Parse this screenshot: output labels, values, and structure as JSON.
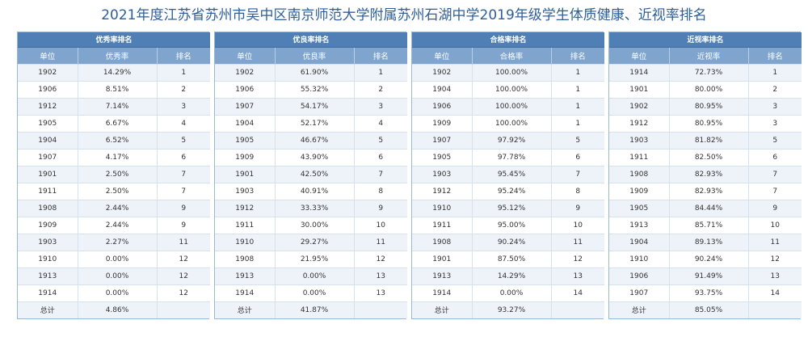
{
  "title": "2021年度江苏省苏州市吴中区南京师范大学附属苏州石湖中学2019年级学生体质健康、近视率排名",
  "panels": [
    {
      "title": "优秀率排名",
      "headers": [
        "单位",
        "优秀率",
        "排名"
      ],
      "rows": [
        [
          "1902",
          "14.29%",
          "1"
        ],
        [
          "1906",
          "8.51%",
          "2"
        ],
        [
          "1912",
          "7.14%",
          "3"
        ],
        [
          "1905",
          "6.67%",
          "4"
        ],
        [
          "1904",
          "6.52%",
          "5"
        ],
        [
          "1907",
          "4.17%",
          "6"
        ],
        [
          "1901",
          "2.50%",
          "7"
        ],
        [
          "1911",
          "2.50%",
          "7"
        ],
        [
          "1908",
          "2.44%",
          "9"
        ],
        [
          "1909",
          "2.44%",
          "9"
        ],
        [
          "1903",
          "2.27%",
          "11"
        ],
        [
          "1910",
          "0.00%",
          "12"
        ],
        [
          "1913",
          "0.00%",
          "12"
        ],
        [
          "1914",
          "0.00%",
          "12"
        ],
        [
          "总计",
          "4.86%",
          ""
        ]
      ]
    },
    {
      "title": "优良率排名",
      "headers": [
        "单位",
        "优良率",
        "排名"
      ],
      "rows": [
        [
          "1902",
          "61.90%",
          "1"
        ],
        [
          "1906",
          "55.32%",
          "2"
        ],
        [
          "1907",
          "54.17%",
          "3"
        ],
        [
          "1904",
          "52.17%",
          "4"
        ],
        [
          "1905",
          "46.67%",
          "5"
        ],
        [
          "1909",
          "43.90%",
          "6"
        ],
        [
          "1901",
          "42.50%",
          "7"
        ],
        [
          "1903",
          "40.91%",
          "8"
        ],
        [
          "1912",
          "33.33%",
          "9"
        ],
        [
          "1911",
          "30.00%",
          "10"
        ],
        [
          "1910",
          "29.27%",
          "11"
        ],
        [
          "1908",
          "21.95%",
          "12"
        ],
        [
          "1913",
          "0.00%",
          "13"
        ],
        [
          "1914",
          "0.00%",
          "13"
        ],
        [
          "总计",
          "41.87%",
          ""
        ]
      ]
    },
    {
      "title": "合格率排名",
      "headers": [
        "单位",
        "合格率",
        "排名"
      ],
      "rows": [
        [
          "1902",
          "100.00%",
          "1"
        ],
        [
          "1904",
          "100.00%",
          "1"
        ],
        [
          "1906",
          "100.00%",
          "1"
        ],
        [
          "1909",
          "100.00%",
          "1"
        ],
        [
          "1907",
          "97.92%",
          "5"
        ],
        [
          "1905",
          "97.78%",
          "6"
        ],
        [
          "1903",
          "95.45%",
          "7"
        ],
        [
          "1912",
          "95.24%",
          "8"
        ],
        [
          "1910",
          "95.12%",
          "9"
        ],
        [
          "1911",
          "95.00%",
          "10"
        ],
        [
          "1908",
          "90.24%",
          "11"
        ],
        [
          "1901",
          "87.50%",
          "12"
        ],
        [
          "1913",
          "14.29%",
          "13"
        ],
        [
          "1914",
          "0.00%",
          "14"
        ],
        [
          "总计",
          "93.27%",
          ""
        ]
      ]
    },
    {
      "title": "近视率排名",
      "headers": [
        "单位",
        "近视率",
        "排名"
      ],
      "rows": [
        [
          "1914",
          "72.73%",
          "1"
        ],
        [
          "1901",
          "80.00%",
          "2"
        ],
        [
          "1902",
          "80.95%",
          "3"
        ],
        [
          "1912",
          "80.95%",
          "3"
        ],
        [
          "1903",
          "81.82%",
          "5"
        ],
        [
          "1911",
          "82.50%",
          "6"
        ],
        [
          "1908",
          "82.93%",
          "7"
        ],
        [
          "1909",
          "82.93%",
          "7"
        ],
        [
          "1905",
          "84.44%",
          "9"
        ],
        [
          "1913",
          "85.71%",
          "10"
        ],
        [
          "1904",
          "89.13%",
          "11"
        ],
        [
          "1910",
          "90.24%",
          "12"
        ],
        [
          "1906",
          "91.49%",
          "13"
        ],
        [
          "1907",
          "93.75%",
          "14"
        ],
        [
          "总计",
          "85.05%",
          ""
        ]
      ]
    }
  ],
  "colors": {
    "title_text": "#2d5f9a",
    "panel_title_bg": "#4f7fb4",
    "header_bg": "#7fa5ce",
    "stripe_bg": "#eef3fa"
  }
}
